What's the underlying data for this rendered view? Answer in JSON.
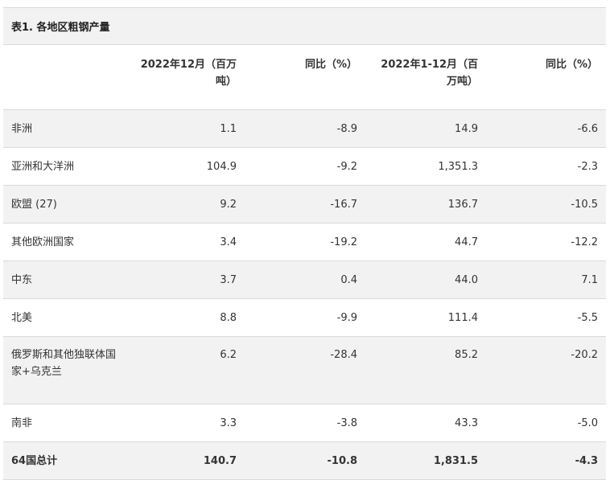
{
  "table": {
    "caption": "表1. 各地区粗钢产量",
    "headers": [
      "",
      "2022年12月（百万吨）",
      "同比（%）",
      "2022年1-12月（百万吨）",
      "同比（%）"
    ],
    "rows": [
      [
        "非洲",
        "1.1",
        "-8.9",
        "14.9",
        "-6.6"
      ],
      [
        "亚洲和大洋洲",
        "104.9",
        "-9.2",
        "1,351.3",
        "-2.3"
      ],
      [
        "欧盟 (27)",
        "9.2",
        "-16.7",
        "136.7",
        "-10.5"
      ],
      [
        "其他欧洲国家",
        "3.4",
        "-19.2",
        "44.7",
        "-12.2"
      ],
      [
        "中东",
        "3.7",
        "0.4",
        "44.0",
        "7.1"
      ],
      [
        "北美",
        "8.8",
        "-9.9",
        "111.4",
        "-5.5"
      ],
      [
        "俄罗斯和其他独联体国家+乌克兰",
        "6.2",
        "-28.4",
        "85.2",
        "-20.2"
      ],
      [
        "南非",
        "3.3",
        "-3.8",
        "43.3",
        "-5.0"
      ],
      [
        "64国总计",
        "140.7",
        "-10.8",
        "1,831.5",
        "-4.3"
      ]
    ]
  }
}
